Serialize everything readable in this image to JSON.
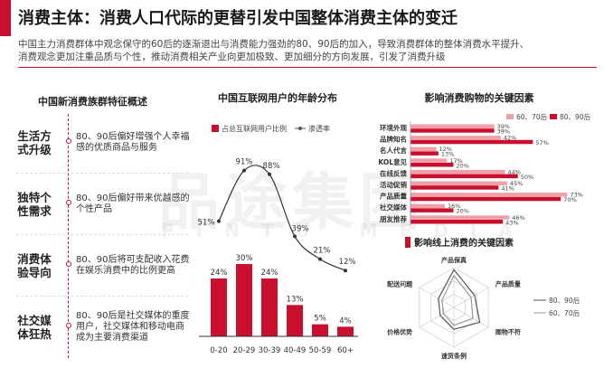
{
  "header": {
    "title": "消费主体：消费人口代际的更替引发中国整体消费主体的变迁",
    "intro_lines": [
      "中国主力消费群体中观念保守的60后的逐渐退出与消费能力强劲的80、90后的加入，导致消费群体的整体消费水平提升、",
      "消费观念更加注重品质与个性，推动消费相关产业向更加极致、更加细分的方向发展，引发了消费升级"
    ]
  },
  "features": {
    "heading": "中国新消费族群特征概述",
    "items": [
      {
        "label": "生活方式升级",
        "desc": "80、90后偏好增强个人幸福感的优质商品与服务"
      },
      {
        "label": "独特个性需求",
        "desc": "80、90后偏好带来优越感的个性产品"
      },
      {
        "label": "消费体验导向",
        "desc": "80、90后将可支配收入花费在娱乐消费中的比例更高"
      },
      {
        "label": "社交媒体狂热",
        "desc": "80、90后是社交媒体的重度用户，社交媒体和移动电商成为主要消费渠道"
      }
    ]
  },
  "watermark": {
    "main": "品途集团",
    "sub": "PINTU MEDIA"
  },
  "colors": {
    "accent": "#c8102e",
    "accent_light": "#f2a0a7",
    "gray": "#999999",
    "dark": "#555555"
  },
  "chart_data": [
    {
      "type": "bar",
      "title": "中国互联网用户的年龄分布",
      "categories": [
        "0-20",
        "20-29",
        "30-39",
        "40-49",
        "50-59",
        "60+"
      ],
      "series": [
        {
          "name": "占总互联网用户比例",
          "kind": "bar",
          "values": [
            24,
            30,
            24,
            13,
            5,
            4
          ],
          "labels": [
            "24%",
            "30%",
            "24%",
            "13%",
            "5%",
            "4%"
          ]
        },
        {
          "name": "渗透率",
          "kind": "line",
          "values": [
            51,
            91,
            88,
            39,
            21,
            12
          ],
          "labels": [
            "51%",
            "91%",
            "88%",
            "39%",
            "21%",
            "12%"
          ]
        }
      ],
      "ylim": [
        0,
        100
      ],
      "legend": "top"
    },
    {
      "type": "bar",
      "orientation": "horizontal",
      "title": "影响消费购物的关键因素",
      "categories": [
        "环境外观",
        "品牌知名",
        "名人代言",
        "KOL意见",
        "在线反馈",
        "活动促销",
        "产品质量",
        "社交媒体",
        "朋友推荐"
      ],
      "series": [
        {
          "name": "60、70后",
          "values": [
            39,
            42,
            12,
            17,
            44,
            45,
            73,
            16,
            46
          ],
          "labels": [
            "39%",
            "42%",
            "12%",
            "17%",
            "44%",
            "45%",
            "73%",
            "16%",
            "46%"
          ]
        },
        {
          "name": "80、90后",
          "values": [
            39,
            57,
            13,
            20,
            50,
            41,
            70,
            20,
            43
          ],
          "labels": [
            "39%",
            "57%",
            "13%",
            "20%",
            "50%",
            "41%",
            "70%",
            "20%",
            "43%"
          ]
        }
      ],
      "legend": "top-right"
    },
    {
      "type": "radar",
      "title": "影响线上消费的关键因素",
      "axes": [
        "产品保真",
        "产品质量",
        "图物不符",
        "速货条例",
        "价格优势",
        "配送问题"
      ],
      "series": [
        {
          "name": "80、90后",
          "values": [
            0.95,
            0.6,
            0.75,
            0.55,
            0.4,
            0.45
          ]
        },
        {
          "name": "60、70后",
          "values": [
            0.8,
            0.5,
            0.55,
            0.45,
            0.3,
            0.35
          ]
        }
      ],
      "legend": "right"
    }
  ]
}
